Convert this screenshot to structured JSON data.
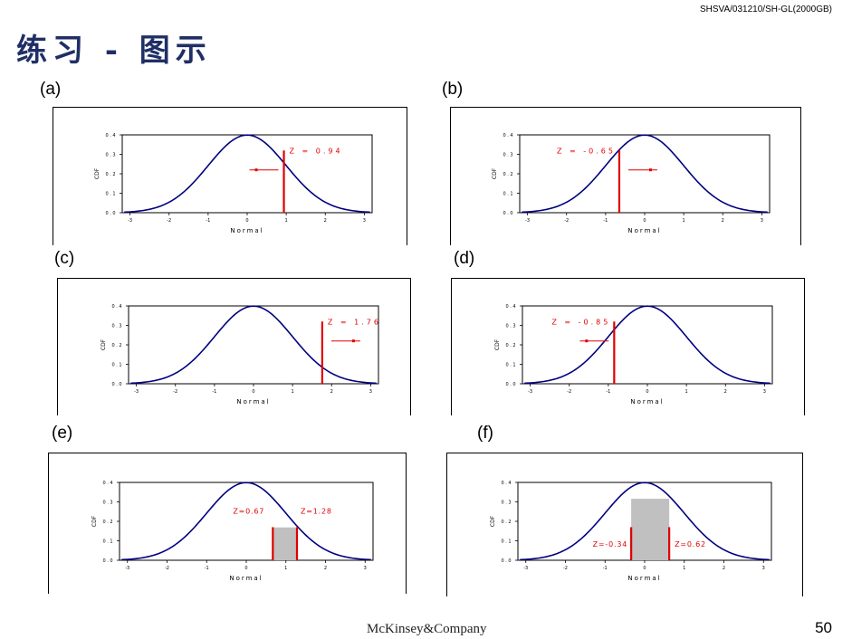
{
  "header": {
    "doc_code": "SHSVA/031210/SH-GL(2000GB)",
    "title": "练习 - 图示"
  },
  "footer": {
    "logo": "McKinsey&Company",
    "page_number": "50"
  },
  "colors": {
    "curve": "#000080",
    "marker": "#e00000",
    "shade": "#c0c0c0",
    "title": "#1f2f66"
  },
  "chart_data": [
    {
      "panel": "(a)",
      "type": "line",
      "function": "standard normal pdf",
      "xlabel": "Normal",
      "ylabel": "CDF",
      "xlim": [
        -3.2,
        3.2
      ],
      "ylim": [
        0,
        0.4
      ],
      "xticks": [
        "-3",
        "-2",
        "-1",
        "0",
        "1",
        "2",
        "3"
      ],
      "yticks": [
        "0.0",
        "0.1",
        "0.2",
        "0.3",
        "0.4"
      ],
      "annotations": [
        {
          "label": "Z = 0.94",
          "z": 0.94,
          "arrow": "left"
        }
      ]
    },
    {
      "panel": "(b)",
      "type": "line",
      "function": "standard normal pdf",
      "xlabel": "Normal",
      "ylabel": "CDF",
      "xlim": [
        -3.2,
        3.2
      ],
      "ylim": [
        0,
        0.4
      ],
      "xticks": [
        "-3",
        "-2",
        "-1",
        "0",
        "1",
        "2",
        "3"
      ],
      "yticks": [
        "0.0",
        "0.1",
        "0.2",
        "0.3",
        "0.4"
      ],
      "annotations": [
        {
          "label": "Z = -0.65",
          "z": -0.65,
          "arrow": "right"
        }
      ]
    },
    {
      "panel": "(c)",
      "type": "line",
      "function": "standard normal pdf",
      "xlabel": "Normal",
      "ylabel": "CDF",
      "xlim": [
        -3.2,
        3.2
      ],
      "ylim": [
        0,
        0.4
      ],
      "xticks": [
        "-3",
        "-2",
        "-1",
        "0",
        "1",
        "2",
        "3"
      ],
      "yticks": [
        "0.0",
        "0.1",
        "0.2",
        "0.3",
        "0.4"
      ],
      "annotations": [
        {
          "label": "Z = 1.76",
          "z": 1.76,
          "arrow": "right"
        }
      ]
    },
    {
      "panel": "(d)",
      "type": "line",
      "function": "standard normal pdf",
      "xlabel": "Normal",
      "ylabel": "CDF",
      "xlim": [
        -3.2,
        3.2
      ],
      "ylim": [
        0,
        0.4
      ],
      "xticks": [
        "-3",
        "-2",
        "-1",
        "0",
        "1",
        "2",
        "3"
      ],
      "yticks": [
        "0.0",
        "0.1",
        "0.2",
        "0.3",
        "0.4"
      ],
      "annotations": [
        {
          "label": "Z = -0.85",
          "z": -0.85,
          "arrow": "left"
        }
      ]
    },
    {
      "panel": "(e)",
      "type": "line",
      "function": "standard normal pdf",
      "xlabel": "Normal",
      "ylabel": "CDF",
      "xlim": [
        -3.2,
        3.2
      ],
      "ylim": [
        0,
        0.4
      ],
      "xticks": [
        "-3",
        "-2",
        "-1",
        "0",
        "1",
        "2",
        "3"
      ],
      "yticks": [
        "0.0",
        "0.1",
        "0.2",
        "0.3",
        "0.4"
      ],
      "annotations": [
        {
          "label": "Z=0.67",
          "z": 0.67,
          "arrow": "none"
        },
        {
          "label": "Z=1.28",
          "z": 1.28,
          "arrow": "none"
        }
      ],
      "shaded_interval": [
        0.67,
        1.28
      ]
    },
    {
      "panel": "(f)",
      "type": "line",
      "function": "standard normal pdf",
      "xlabel": "Normal",
      "ylabel": "CDF",
      "xlim": [
        -3.2,
        3.2
      ],
      "ylim": [
        0,
        0.4
      ],
      "xticks": [
        "-3",
        "-2",
        "-1",
        "0",
        "1",
        "2",
        "3"
      ],
      "yticks": [
        "0.0",
        "0.1",
        "0.2",
        "0.3",
        "0.4"
      ],
      "annotations": [
        {
          "label": "Z=-0.34",
          "z": -0.34,
          "arrow": "none"
        },
        {
          "label": "Z=0.62",
          "z": 0.62,
          "arrow": "none"
        }
      ],
      "shaded_interval": [
        -0.34,
        0.62
      ]
    }
  ]
}
